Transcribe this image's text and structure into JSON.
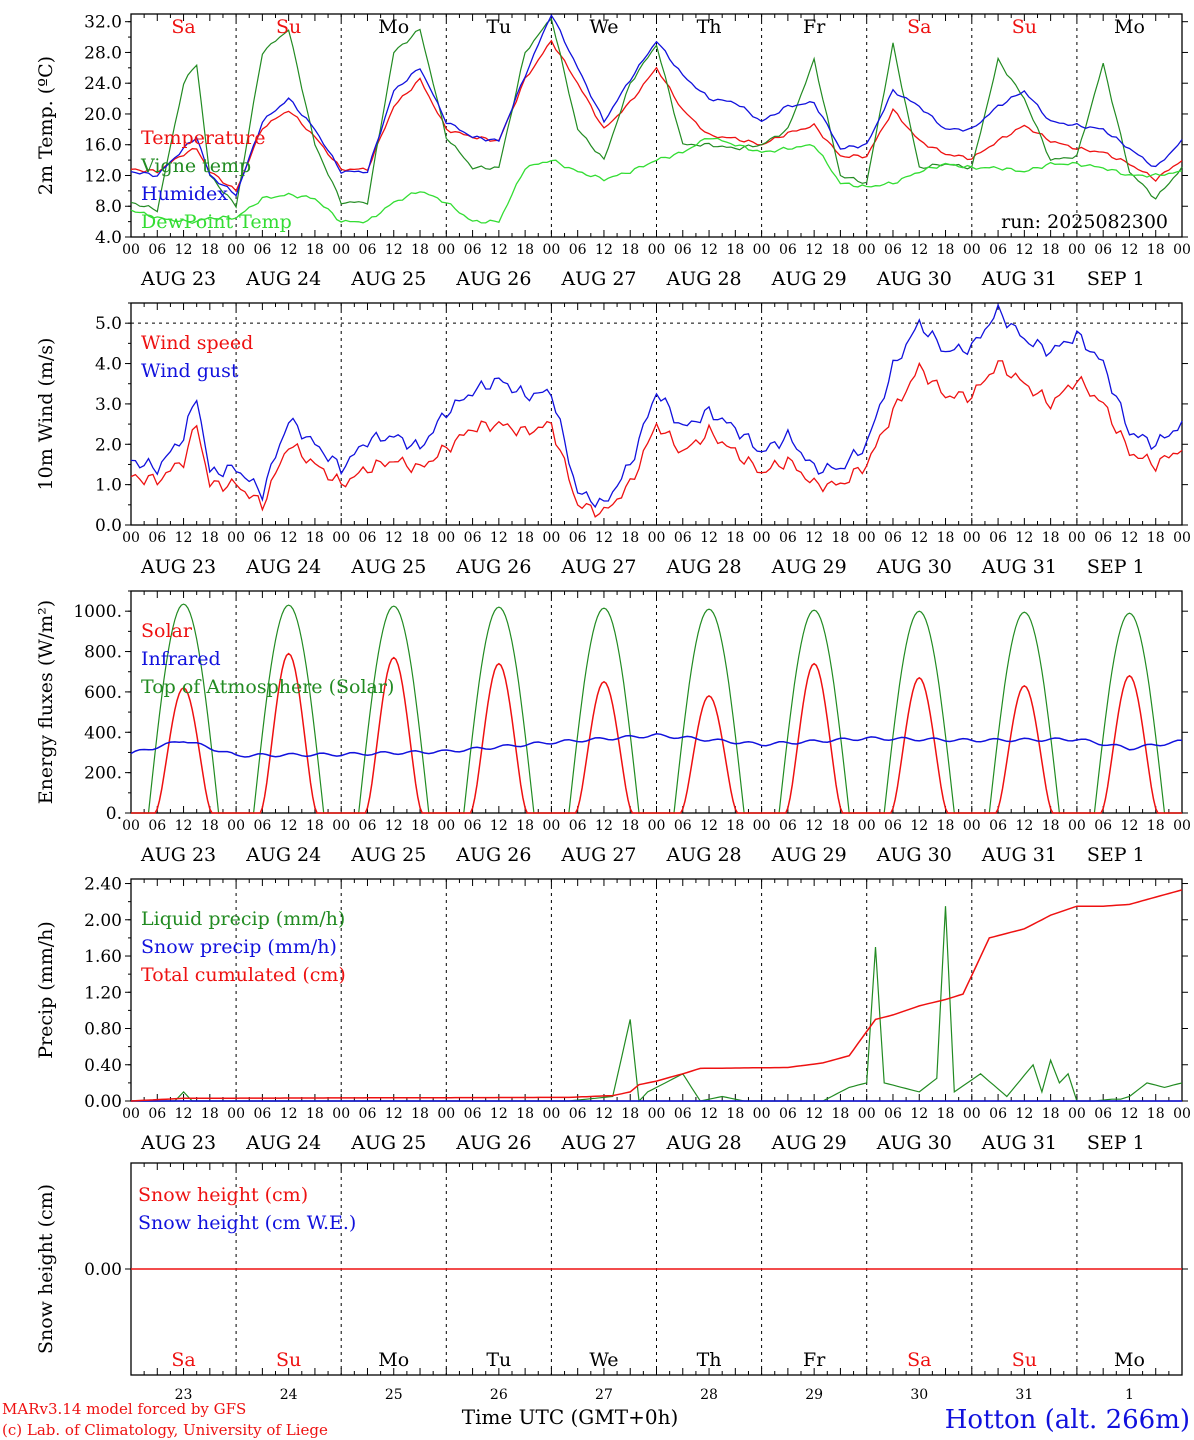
{
  "colors": {
    "red": "#ee1111",
    "green": "#228b22",
    "lightgreen": "#33dd33",
    "blue": "#1111dd",
    "black": "#000000"
  },
  "time_axis": {
    "hour_labels": [
      "00",
      "06",
      "12",
      "18"
    ],
    "final_label": "00",
    "date_labels": [
      "AUG 23",
      "AUG 24",
      "AUG 25",
      "AUG 26",
      "AUG 27",
      "AUG 28",
      "AUG 29",
      "AUG 30",
      "AUG 31",
      "SEP  1"
    ],
    "weekdays": [
      {
        "label": "Sa",
        "weekend": true
      },
      {
        "label": "Su",
        "weekend": true
      },
      {
        "label": "Mo",
        "weekend": false
      },
      {
        "label": "Tu",
        "weekend": false
      },
      {
        "label": "We",
        "weekend": false
      },
      {
        "label": "Th",
        "weekend": false
      },
      {
        "label": "Fr",
        "weekend": false
      },
      {
        "label": "Sa",
        "weekend": true
      },
      {
        "label": "Su",
        "weekend": true
      },
      {
        "label": "Mo",
        "weekend": false
      }
    ],
    "day_numbers": [
      "23",
      "24",
      "25",
      "26",
      "27",
      "28",
      "29",
      "30",
      "31",
      "1"
    ]
  },
  "footer": {
    "credit_line1": "MARv3.14 model forced by GFS",
    "credit_line2": "(c) Lab. of Climatology, University of Liege",
    "xlabel": "Time UTC (GMT+0h)",
    "station": "Hotton (alt. 266m)"
  },
  "chart_data": [
    {
      "type": "line",
      "ylabel": "2m Temp. (ºC)",
      "ylim": [
        4,
        33
      ],
      "ticks": [
        4,
        8,
        12,
        16,
        20,
        24,
        28,
        32
      ],
      "tick_labels": [
        "4.0",
        "8.0",
        "12.0",
        "16.0",
        "20.0",
        "24.0",
        "28.0",
        "32.0"
      ],
      "annotation": "run: 2025082300",
      "x_hours": [
        0,
        6,
        12,
        15,
        18,
        24,
        30,
        36,
        42,
        48,
        54,
        60,
        66,
        72,
        78,
        84,
        90,
        96,
        102,
        108,
        114,
        120,
        126,
        132,
        138,
        144,
        150,
        156,
        162,
        168,
        174,
        180,
        186,
        192,
        198,
        204,
        210,
        216,
        222,
        228,
        234,
        240
      ],
      "series": [
        {
          "name": "Temperature",
          "color": "red",
          "values": [
            12.8,
            12.5,
            14.8,
            15.5,
            12.5,
            10.0,
            18.2,
            20.5,
            17.0,
            12.8,
            12.8,
            21.0,
            24.5,
            18.0,
            17.0,
            16.5,
            24.5,
            29.5,
            24.0,
            18.0,
            21.5,
            26.0,
            20.5,
            17.2,
            16.8,
            16.0,
            17.5,
            18.5,
            14.5,
            14.5,
            20.5,
            16.5,
            14.8,
            14.2,
            16.5,
            18.5,
            16.5,
            15.5,
            15.0,
            13.5,
            11.5,
            14.0
          ]
        },
        {
          "name": "Vigne temp",
          "color": "green",
          "values": [
            8.5,
            7.5,
            24.0,
            26.5,
            12.0,
            8.0,
            28.0,
            31.0,
            16.0,
            8.5,
            8.5,
            28.0,
            31.0,
            17.0,
            13.0,
            13.0,
            28.0,
            32.5,
            18.0,
            14.0,
            24.0,
            29.0,
            16.0,
            16.0,
            15.5,
            16.0,
            18.0,
            27.0,
            12.0,
            11.0,
            29.0,
            13.0,
            13.5,
            13.0,
            27.0,
            22.0,
            14.0,
            14.5,
            26.5,
            12.5,
            9.0,
            13.0
          ]
        },
        {
          "name": "Humidex",
          "color": "blue",
          "values": [
            12.5,
            12.0,
            15.5,
            17.0,
            12.0,
            9.5,
            19.0,
            22.0,
            18.0,
            12.5,
            12.5,
            23.0,
            26.0,
            19.0,
            17.0,
            16.5,
            25.0,
            33.0,
            26.0,
            19.0,
            24.5,
            29.5,
            25.0,
            22.0,
            21.5,
            19.0,
            21.0,
            21.5,
            15.5,
            16.0,
            23.0,
            21.0,
            18.0,
            18.0,
            21.0,
            23.0,
            19.0,
            18.5,
            18.0,
            15.5,
            13.0,
            16.5
          ]
        },
        {
          "name": "DewPoint Temp",
          "color": "lightgreen",
          "values": [
            7.5,
            6.5,
            6.0,
            6.0,
            6.5,
            6.5,
            9.0,
            9.5,
            9.0,
            6.0,
            6.0,
            8.5,
            10.0,
            8.5,
            6.0,
            6.0,
            13.0,
            14.0,
            12.5,
            11.5,
            12.5,
            14.0,
            15.0,
            17.0,
            16.0,
            15.0,
            15.5,
            16.0,
            11.0,
            10.5,
            11.0,
            12.5,
            13.5,
            13.0,
            13.0,
            12.5,
            13.5,
            13.5,
            13.0,
            12.0,
            12.0,
            12.5
          ]
        }
      ]
    },
    {
      "type": "line",
      "ylabel": "10m Wind (m/s)",
      "ylim": [
        0,
        5.5
      ],
      "ticks": [
        0,
        1,
        2,
        3,
        4,
        5
      ],
      "tick_labels": [
        "0.0",
        "1.0",
        "2.0",
        "3.0",
        "4.0",
        "5.0"
      ],
      "x_hours": [
        0,
        6,
        12,
        15,
        18,
        24,
        30,
        36,
        42,
        48,
        54,
        60,
        66,
        72,
        78,
        84,
        90,
        96,
        102,
        108,
        114,
        120,
        126,
        132,
        138,
        144,
        150,
        156,
        162,
        168,
        174,
        180,
        186,
        192,
        198,
        204,
        210,
        216,
        222,
        228,
        234,
        240
      ],
      "series": [
        {
          "name": "Wind speed",
          "color": "red",
          "values": [
            1.2,
            1.1,
            1.6,
            2.5,
            1.0,
            1.0,
            0.5,
            2.0,
            1.5,
            1.0,
            1.4,
            1.6,
            1.4,
            1.9,
            2.4,
            2.5,
            2.3,
            2.5,
            0.5,
            0.3,
            1.0,
            2.5,
            1.8,
            2.3,
            1.8,
            1.3,
            1.6,
            1.0,
            1.0,
            1.5,
            2.8,
            3.9,
            3.2,
            3.2,
            4.0,
            3.5,
            3.0,
            3.6,
            3.0,
            1.8,
            1.5,
            1.9
          ]
        },
        {
          "name": "Wind gust",
          "color": "blue",
          "values": [
            1.6,
            1.4,
            2.2,
            3.2,
            1.3,
            1.4,
            0.8,
            2.6,
            2.0,
            1.4,
            2.1,
            2.2,
            1.9,
            2.8,
            3.3,
            3.6,
            3.2,
            3.3,
            0.8,
            0.5,
            1.5,
            3.3,
            2.4,
            2.8,
            2.4,
            1.8,
            2.2,
            1.4,
            1.4,
            2.0,
            3.9,
            5.0,
            4.3,
            4.4,
            5.3,
            4.6,
            4.3,
            4.7,
            4.0,
            2.3,
            2.0,
            2.5
          ]
        }
      ]
    },
    {
      "type": "line",
      "ylabel": "Energy fluxes (W/m²)",
      "ylim": [
        0,
        1100
      ],
      "ticks": [
        0,
        200,
        400,
        600,
        800,
        1000
      ],
      "tick_labels": [
        "0.",
        "200.",
        "400.",
        "600.",
        "800.",
        "1000."
      ],
      "solar_peaks": [
        620,
        790,
        770,
        740,
        650,
        580,
        740,
        670,
        630,
        680
      ],
      "toa_peaks": [
        1035,
        1030,
        1025,
        1020,
        1015,
        1010,
        1005,
        1000,
        995,
        990
      ],
      "infrared": {
        "x_hours": [
          0,
          12,
          24,
          48,
          72,
          96,
          120,
          144,
          168,
          192,
          216,
          228,
          240
        ],
        "values": [
          295,
          360,
          285,
          290,
          305,
          350,
          385,
          340,
          370,
          360,
          365,
          320,
          355
        ]
      },
      "series": [
        {
          "name": "Solar",
          "color": "red"
        },
        {
          "name": "Infrared",
          "color": "blue"
        },
        {
          "name": "Top of Atmosphere (Solar)",
          "color": "green"
        }
      ]
    },
    {
      "type": "line",
      "ylabel": "Precip (mm/h)",
      "ylim": [
        0,
        2.45
      ],
      "ticks": [
        0,
        0.4,
        0.8,
        1.2,
        1.6,
        2.0,
        2.4
      ],
      "tick_labels": [
        "0.00",
        "0.40",
        "0.80",
        "1.20",
        "1.60",
        "2.00",
        "2.40"
      ],
      "series": [
        {
          "name": "Liquid precip (mm/h)",
          "color": "green",
          "x_hours": [
            0,
            10,
            12,
            14,
            100,
            110,
            114,
            116,
            118,
            126,
            130,
            135,
            140,
            150,
            158,
            164,
            168,
            170,
            172,
            180,
            184,
            186,
            188,
            194,
            200,
            206,
            208,
            210,
            212,
            214,
            216,
            220,
            224,
            226,
            228,
            232,
            236,
            240
          ],
          "values": [
            0,
            0,
            0.1,
            0,
            0,
            0.05,
            0.9,
            0,
            0.1,
            0.3,
            0,
            0.05,
            0,
            0,
            0,
            0.15,
            0.2,
            1.7,
            0.2,
            0.1,
            0.25,
            2.15,
            0.1,
            0.3,
            0.05,
            0.4,
            0.1,
            0.45,
            0.2,
            0.3,
            0,
            0,
            0.02,
            0.02,
            0.05,
            0.2,
            0.15,
            0.2
          ]
        },
        {
          "name": "Snow precip (mm/h)",
          "color": "blue"
        },
        {
          "name": "Total cumulated (cm)",
          "color": "red",
          "x_hours": [
            0,
            12,
            100,
            110,
            114,
            116,
            120,
            126,
            130,
            150,
            158,
            164,
            170,
            174,
            180,
            186,
            190,
            196,
            200,
            204,
            210,
            216,
            222,
            228,
            234,
            240
          ],
          "values": [
            0,
            0.03,
            0.04,
            0.06,
            0.1,
            0.18,
            0.22,
            0.3,
            0.36,
            0.37,
            0.42,
            0.5,
            0.9,
            0.95,
            1.05,
            1.12,
            1.18,
            1.8,
            1.85,
            1.9,
            2.05,
            2.15,
            2.15,
            2.17,
            2.25,
            2.33
          ]
        }
      ]
    },
    {
      "type": "line",
      "ylabel": "Snow height (cm)",
      "ylim": [
        -1,
        1
      ],
      "ticks": [
        0
      ],
      "tick_labels": [
        "0.00"
      ],
      "series": [
        {
          "name": "Snow height (cm)",
          "color": "red",
          "x_hours": [
            0,
            240
          ],
          "values": [
            0,
            0
          ]
        },
        {
          "name": "Snow height (cm W.E.)",
          "color": "blue"
        }
      ]
    }
  ]
}
